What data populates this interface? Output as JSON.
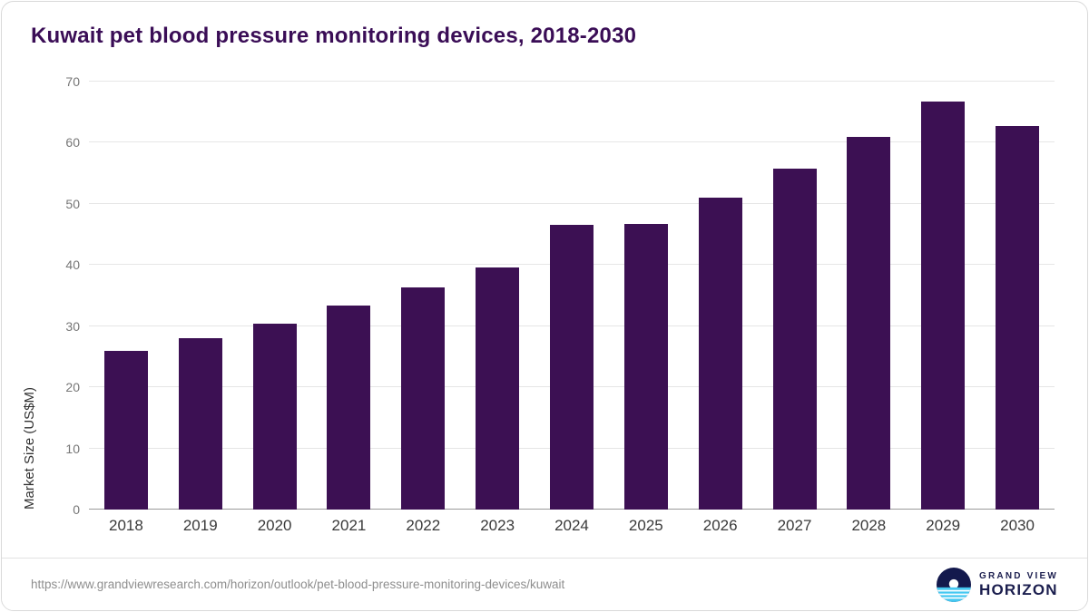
{
  "title": "Kuwait pet blood pressure monitoring devices, 2018-2030",
  "chart_data": {
    "type": "bar",
    "title": "Kuwait pet blood pressure monitoring devices, 2018-2030",
    "categories": [
      "2018",
      "2019",
      "2020",
      "2021",
      "2022",
      "2023",
      "2024",
      "2025",
      "2026",
      "2027",
      "2028",
      "2029",
      "2030"
    ],
    "values": [
      26.0,
      28.1,
      30.4,
      33.3,
      36.3,
      39.6,
      46.6,
      46.7,
      51.0,
      55.8,
      60.9,
      66.7,
      62.8
    ],
    "xlabel": "",
    "ylabel": "Market Size (US$M)",
    "ylim": [
      0,
      70
    ],
    "ytick_step": 10,
    "grid": true,
    "legend": "none",
    "bar_color": "#3c1053"
  },
  "colors": {
    "title": "#3a0d56",
    "bar": "#3c1053",
    "gridline": "#e6e6e6",
    "logo_navy": "#1b1e4e",
    "logo_blue": "#45c8f1"
  },
  "footer": {
    "source_url": "https://www.grandviewresearch.com/horizon/outlook/pet-blood-pressure-monitoring-devices/kuwait",
    "logo": {
      "line1": "GRAND VIEW",
      "line2": "HORIZON"
    }
  }
}
